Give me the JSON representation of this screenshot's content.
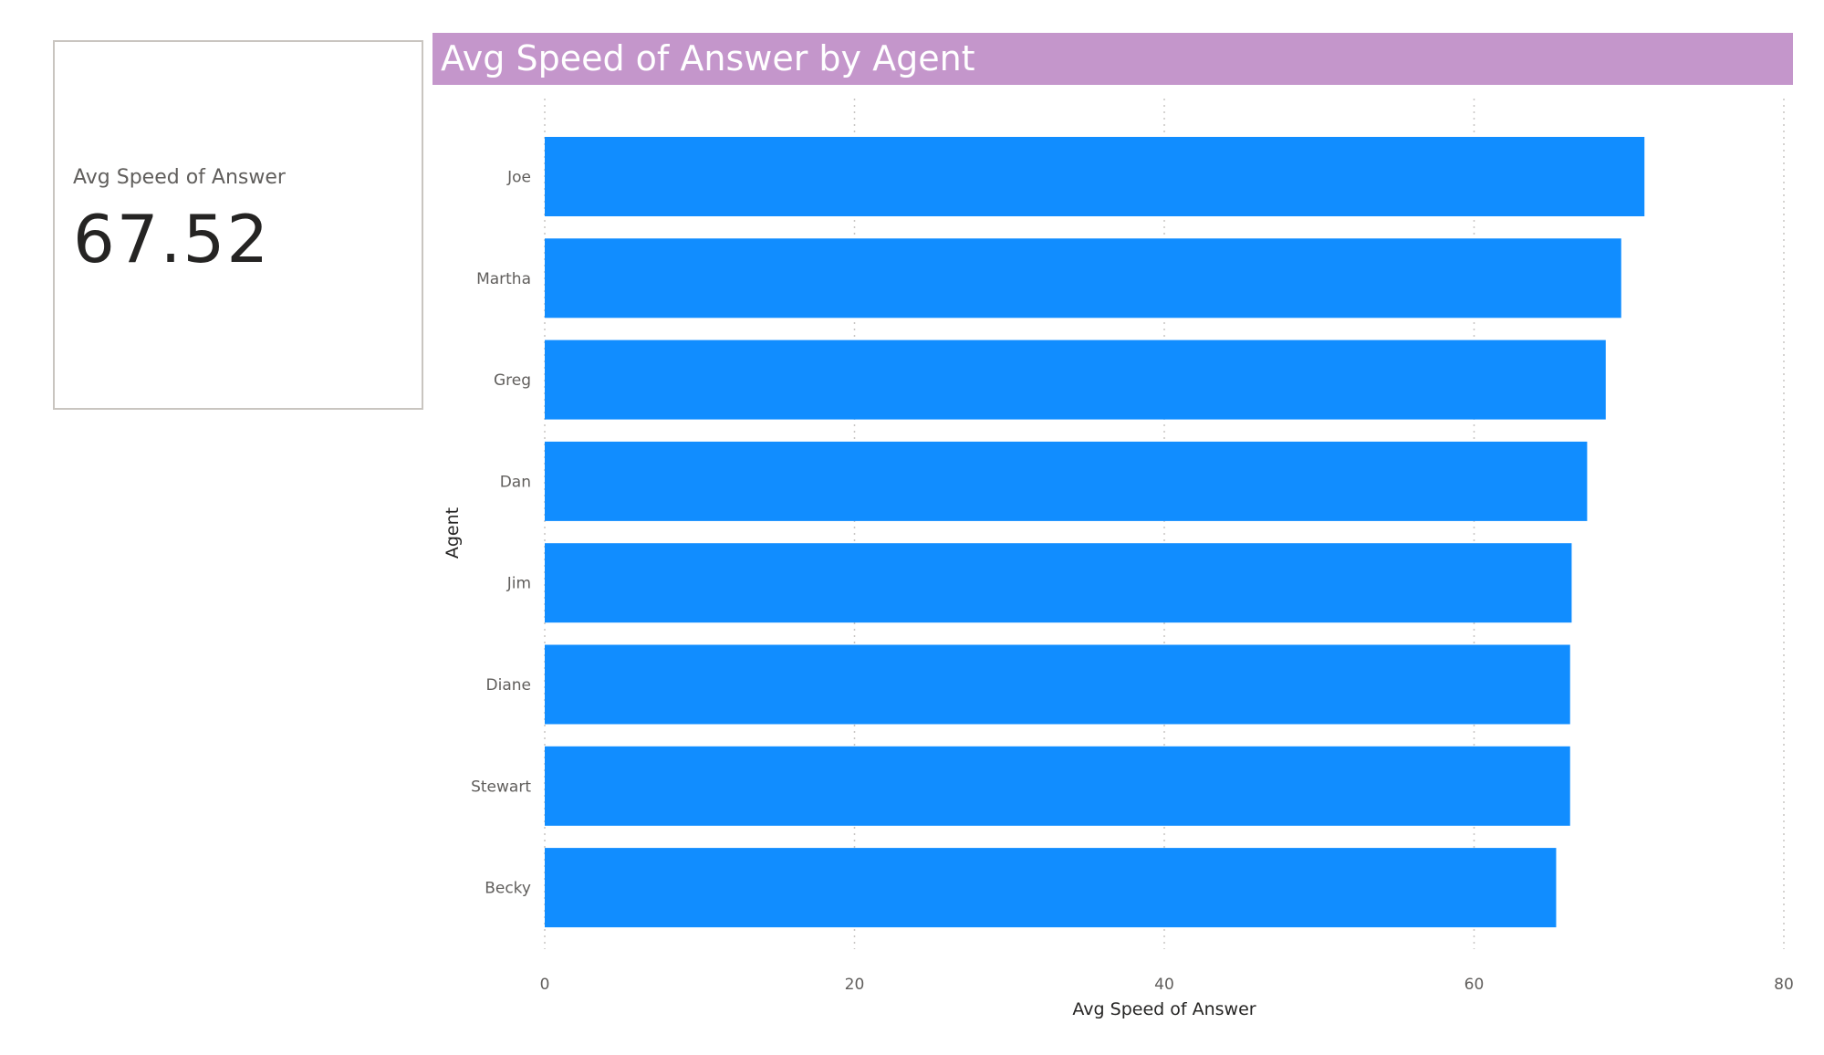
{
  "kpi": {
    "label": "Avg Speed of Answer",
    "value": "67.52"
  },
  "chart_title": "Avg Speed of Answer by Agent",
  "colors": {
    "bar": "#118dff",
    "title_background": "#c496cb",
    "title_text": "#ffffff",
    "gridline": "#c8c6c4",
    "kpi_border": "#c9c5c0"
  },
  "chart_data": {
    "type": "bar",
    "orientation": "horizontal",
    "title": "Avg Speed of Answer by Agent",
    "xlabel": "Avg Speed of Answer",
    "ylabel": "Agent",
    "categories": [
      "Joe",
      "Martha",
      "Greg",
      "Dan",
      "Jim",
      "Diane",
      "Stewart",
      "Becky"
    ],
    "values": [
      71.0,
      69.5,
      68.5,
      67.3,
      66.3,
      66.2,
      66.2,
      65.3
    ],
    "xlim": [
      0,
      80
    ],
    "xticks": [
      "0",
      "20",
      "40",
      "60",
      "80"
    ],
    "grid": true
  }
}
